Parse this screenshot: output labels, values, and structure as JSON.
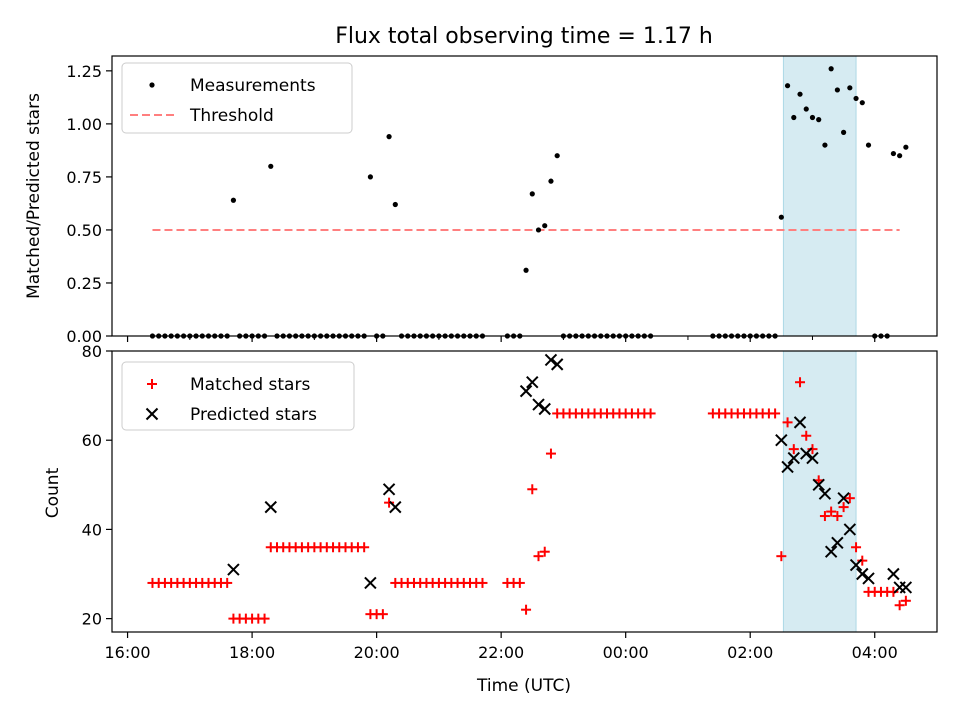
{
  "chart_data": [
    {
      "type": "scatter",
      "title": "Flux total observing time = 1.17 h",
      "ylabel": "Matched/Predicted stars",
      "xlabel": "",
      "ylim": [
        0,
        1.32
      ],
      "yticks": [
        0,
        0.25,
        0.5,
        0.75,
        1.0,
        1.25
      ],
      "ytick_labels": [
        "0.00",
        "0.25",
        "0.50",
        "0.75",
        "1.00",
        "1.25"
      ],
      "legend": [
        "Measurements",
        "Threshold"
      ],
      "legend_position": "top-left",
      "threshold": 0.5,
      "threshold_range": [
        "16:24",
        "04:24"
      ],
      "highlight_span": [
        "02:32",
        "03:42"
      ],
      "series": [
        {
          "name": "Measurements",
          "points": [
            [
              "16:24",
              0
            ],
            [
              "16:30",
              0
            ],
            [
              "16:36",
              0
            ],
            [
              "16:42",
              0
            ],
            [
              "16:48",
              0
            ],
            [
              "16:54",
              0
            ],
            [
              "17:00",
              0
            ],
            [
              "17:06",
              0
            ],
            [
              "17:12",
              0
            ],
            [
              "17:18",
              0
            ],
            [
              "17:24",
              0
            ],
            [
              "17:30",
              0
            ],
            [
              "17:36",
              0
            ],
            [
              "17:42",
              0.64
            ],
            [
              "17:48",
              0
            ],
            [
              "17:54",
              0
            ],
            [
              "18:00",
              0
            ],
            [
              "18:06",
              0
            ],
            [
              "18:12",
              0
            ],
            [
              "18:18",
              0.8
            ],
            [
              "18:24",
              0
            ],
            [
              "18:30",
              0
            ],
            [
              "18:36",
              0
            ],
            [
              "18:42",
              0
            ],
            [
              "18:48",
              0
            ],
            [
              "18:54",
              0
            ],
            [
              "19:00",
              0
            ],
            [
              "19:06",
              0
            ],
            [
              "19:12",
              0
            ],
            [
              "19:18",
              0
            ],
            [
              "19:24",
              0
            ],
            [
              "19:30",
              0
            ],
            [
              "19:36",
              0
            ],
            [
              "19:42",
              0
            ],
            [
              "19:48",
              0
            ],
            [
              "19:54",
              0.75
            ],
            [
              "20:00",
              0
            ],
            [
              "20:06",
              0
            ],
            [
              "20:12",
              0.94
            ],
            [
              "20:18",
              0.62
            ],
            [
              "20:24",
              0
            ],
            [
              "20:30",
              0
            ],
            [
              "20:36",
              0
            ],
            [
              "20:42",
              0
            ],
            [
              "20:48",
              0
            ],
            [
              "20:54",
              0
            ],
            [
              "21:00",
              0
            ],
            [
              "21:06",
              0
            ],
            [
              "21:12",
              0
            ],
            [
              "21:18",
              0
            ],
            [
              "21:24",
              0
            ],
            [
              "21:30",
              0
            ],
            [
              "21:36",
              0
            ],
            [
              "21:42",
              0
            ],
            [
              "22:06",
              0
            ],
            [
              "22:12",
              0
            ],
            [
              "22:18",
              0
            ],
            [
              "22:24",
              0.31
            ],
            [
              "22:30",
              0.67
            ],
            [
              "22:36",
              0.5
            ],
            [
              "22:42",
              0.52
            ],
            [
              "22:48",
              0.73
            ],
            [
              "22:54",
              0.85
            ],
            [
              "23:00",
              0
            ],
            [
              "23:06",
              0
            ],
            [
              "23:12",
              0
            ],
            [
              "23:18",
              0
            ],
            [
              "23:24",
              0
            ],
            [
              "23:30",
              0
            ],
            [
              "23:36",
              0
            ],
            [
              "23:42",
              0
            ],
            [
              "23:48",
              0
            ],
            [
              "23:54",
              0
            ],
            [
              "00:00",
              0
            ],
            [
              "00:06",
              0
            ],
            [
              "00:12",
              0
            ],
            [
              "00:18",
              0
            ],
            [
              "00:24",
              0
            ],
            [
              "01:24",
              0
            ],
            [
              "01:30",
              0
            ],
            [
              "01:36",
              0
            ],
            [
              "01:42",
              0
            ],
            [
              "01:48",
              0
            ],
            [
              "01:54",
              0
            ],
            [
              "02:00",
              0
            ],
            [
              "02:06",
              0
            ],
            [
              "02:12",
              0
            ],
            [
              "02:18",
              0
            ],
            [
              "02:24",
              0
            ],
            [
              "02:30",
              0.56
            ],
            [
              "02:36",
              1.18
            ],
            [
              "02:42",
              1.03
            ],
            [
              "02:48",
              1.14
            ],
            [
              "02:54",
              1.07
            ],
            [
              "03:00",
              1.03
            ],
            [
              "03:06",
              1.02
            ],
            [
              "03:12",
              0.9
            ],
            [
              "03:18",
              1.26
            ],
            [
              "03:24",
              1.16
            ],
            [
              "03:30",
              0.96
            ],
            [
              "03:36",
              1.17
            ],
            [
              "03:42",
              1.12
            ],
            [
              "03:48",
              1.1
            ],
            [
              "03:54",
              0.9
            ],
            [
              "04:00",
              0
            ],
            [
              "04:06",
              0
            ],
            [
              "04:12",
              0
            ],
            [
              "04:18",
              0.86
            ],
            [
              "04:24",
              0.85
            ],
            [
              "04:30",
              0.89
            ]
          ]
        }
      ]
    },
    {
      "type": "scatter",
      "title": "",
      "ylabel": "Count",
      "xlabel": "Time (UTC)",
      "ylim": [
        17,
        80
      ],
      "yticks": [
        20,
        40,
        60,
        80
      ],
      "ytick_labels": [
        "20",
        "40",
        "60",
        "80"
      ],
      "xticks": [
        "16:00",
        "18:00",
        "20:00",
        "22:00",
        "00:00",
        "02:00",
        "04:00"
      ],
      "legend": [
        "Matched stars",
        "Predicted stars"
      ],
      "legend_position": "top-left",
      "highlight_span": [
        "02:32",
        "03:42"
      ],
      "series": [
        {
          "name": "Matched stars",
          "color": "#ff0000",
          "points": [
            [
              "16:24",
              28
            ],
            [
              "16:30",
              28
            ],
            [
              "16:36",
              28
            ],
            [
              "16:42",
              28
            ],
            [
              "16:48",
              28
            ],
            [
              "16:54",
              28
            ],
            [
              "17:00",
              28
            ],
            [
              "17:06",
              28
            ],
            [
              "17:12",
              28
            ],
            [
              "17:18",
              28
            ],
            [
              "17:24",
              28
            ],
            [
              "17:30",
              28
            ],
            [
              "17:36",
              28
            ],
            [
              "17:42",
              20
            ],
            [
              "17:48",
              20
            ],
            [
              "17:54",
              20
            ],
            [
              "18:00",
              20
            ],
            [
              "18:06",
              20
            ],
            [
              "18:12",
              20
            ],
            [
              "18:18",
              36
            ],
            [
              "18:24",
              36
            ],
            [
              "18:30",
              36
            ],
            [
              "18:36",
              36
            ],
            [
              "18:42",
              36
            ],
            [
              "18:48",
              36
            ],
            [
              "18:54",
              36
            ],
            [
              "19:00",
              36
            ],
            [
              "19:06",
              36
            ],
            [
              "19:12",
              36
            ],
            [
              "19:18",
              36
            ],
            [
              "19:24",
              36
            ],
            [
              "19:30",
              36
            ],
            [
              "19:36",
              36
            ],
            [
              "19:42",
              36
            ],
            [
              "19:48",
              36
            ],
            [
              "19:54",
              21
            ],
            [
              "20:00",
              21
            ],
            [
              "20:06",
              21
            ],
            [
              "20:12",
              46
            ],
            [
              "20:18",
              28
            ],
            [
              "20:24",
              28
            ],
            [
              "20:30",
              28
            ],
            [
              "20:36",
              28
            ],
            [
              "20:42",
              28
            ],
            [
              "20:48",
              28
            ],
            [
              "20:54",
              28
            ],
            [
              "21:00",
              28
            ],
            [
              "21:06",
              28
            ],
            [
              "21:12",
              28
            ],
            [
              "21:18",
              28
            ],
            [
              "21:24",
              28
            ],
            [
              "21:30",
              28
            ],
            [
              "21:36",
              28
            ],
            [
              "21:42",
              28
            ],
            [
              "22:06",
              28
            ],
            [
              "22:12",
              28
            ],
            [
              "22:18",
              28
            ],
            [
              "22:24",
              22
            ],
            [
              "22:30",
              49
            ],
            [
              "22:36",
              34
            ],
            [
              "22:42",
              35
            ],
            [
              "22:48",
              57
            ],
            [
              "22:54",
              66
            ],
            [
              "23:00",
              66
            ],
            [
              "23:06",
              66
            ],
            [
              "23:12",
              66
            ],
            [
              "23:18",
              66
            ],
            [
              "23:24",
              66
            ],
            [
              "23:30",
              66
            ],
            [
              "23:36",
              66
            ],
            [
              "23:42",
              66
            ],
            [
              "23:48",
              66
            ],
            [
              "23:54",
              66
            ],
            [
              "00:00",
              66
            ],
            [
              "00:06",
              66
            ],
            [
              "00:12",
              66
            ],
            [
              "00:18",
              66
            ],
            [
              "00:24",
              66
            ],
            [
              "01:24",
              66
            ],
            [
              "01:30",
              66
            ],
            [
              "01:36",
              66
            ],
            [
              "01:42",
              66
            ],
            [
              "01:48",
              66
            ],
            [
              "01:54",
              66
            ],
            [
              "02:00",
              66
            ],
            [
              "02:06",
              66
            ],
            [
              "02:12",
              66
            ],
            [
              "02:18",
              66
            ],
            [
              "02:24",
              66
            ],
            [
              "02:30",
              34
            ],
            [
              "02:36",
              64
            ],
            [
              "02:42",
              58
            ],
            [
              "02:48",
              73
            ],
            [
              "02:54",
              61
            ],
            [
              "03:00",
              58
            ],
            [
              "03:06",
              51
            ],
            [
              "03:12",
              43
            ],
            [
              "03:18",
              44
            ],
            [
              "03:24",
              43
            ],
            [
              "03:30",
              45
            ],
            [
              "03:36",
              47
            ],
            [
              "03:42",
              36
            ],
            [
              "03:48",
              33
            ],
            [
              "03:54",
              26
            ],
            [
              "04:00",
              26
            ],
            [
              "04:06",
              26
            ],
            [
              "04:12",
              26
            ],
            [
              "04:18",
              26
            ],
            [
              "04:24",
              23
            ],
            [
              "04:30",
              24
            ]
          ]
        },
        {
          "name": "Predicted stars",
          "color": "#000000",
          "points": [
            [
              "17:42",
              31
            ],
            [
              "18:18",
              45
            ],
            [
              "19:54",
              28
            ],
            [
              "20:12",
              49
            ],
            [
              "20:18",
              45
            ],
            [
              "22:24",
              71
            ],
            [
              "22:30",
              73
            ],
            [
              "22:36",
              68
            ],
            [
              "22:42",
              67
            ],
            [
              "22:48",
              78
            ],
            [
              "22:54",
              77
            ],
            [
              "02:30",
              60
            ],
            [
              "02:36",
              54
            ],
            [
              "02:42",
              56
            ],
            [
              "02:48",
              64
            ],
            [
              "02:54",
              57
            ],
            [
              "03:00",
              56
            ],
            [
              "03:06",
              50
            ],
            [
              "03:12",
              48
            ],
            [
              "03:18",
              35
            ],
            [
              "03:24",
              37
            ],
            [
              "03:30",
              47
            ],
            [
              "03:36",
              40
            ],
            [
              "03:42",
              32
            ],
            [
              "03:48",
              30
            ],
            [
              "03:54",
              29
            ],
            [
              "04:18",
              30
            ],
            [
              "04:24",
              27
            ],
            [
              "04:30",
              27
            ]
          ]
        }
      ]
    }
  ]
}
